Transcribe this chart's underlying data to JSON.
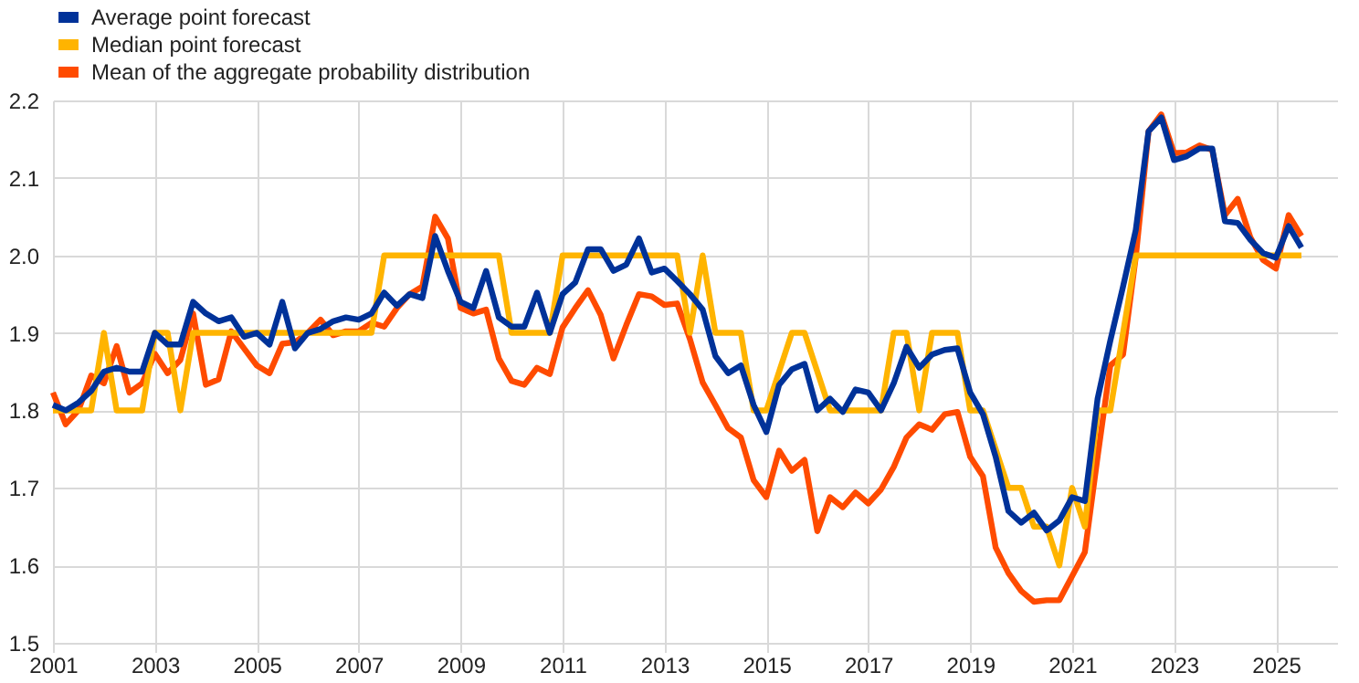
{
  "chart_data": {
    "type": "line",
    "x": [
      2001,
      2001.25,
      2001.5,
      2001.75,
      2002,
      2002.25,
      2002.5,
      2002.75,
      2003,
      2003.25,
      2003.5,
      2003.75,
      2004,
      2004.25,
      2004.5,
      2004.75,
      2005,
      2005.25,
      2005.5,
      2005.75,
      2006,
      2006.25,
      2006.5,
      2006.75,
      2007,
      2007.25,
      2007.5,
      2007.75,
      2008,
      2008.25,
      2008.5,
      2008.75,
      2009,
      2009.25,
      2009.5,
      2009.75,
      2010,
      2010.25,
      2010.5,
      2010.75,
      2011,
      2011.25,
      2011.5,
      2011.75,
      2012,
      2012.25,
      2012.5,
      2012.75,
      2013,
      2013.25,
      2013.5,
      2013.75,
      2014,
      2014.25,
      2014.5,
      2014.75,
      2015,
      2015.25,
      2015.5,
      2015.75,
      2016,
      2016.25,
      2016.5,
      2016.75,
      2017,
      2017.25,
      2017.5,
      2017.75,
      2018,
      2018.25,
      2018.5,
      2018.75,
      2019,
      2019.25,
      2019.5,
      2019.75,
      2020,
      2020.25,
      2020.5,
      2020.75,
      2021,
      2021.25,
      2021.5,
      2021.75,
      2022,
      2022.25,
      2022.5,
      2022.75,
      2023,
      2023.25,
      2023.5,
      2023.75,
      2024,
      2024.25,
      2024.5,
      2024.75,
      2025,
      2025.25,
      2025.5
    ],
    "series": [
      {
        "name": "Average point forecast",
        "color": "#003299",
        "values": [
          1.807,
          1.8,
          1.81,
          1.825,
          1.85,
          1.855,
          1.85,
          1.85,
          1.9,
          1.885,
          1.885,
          1.94,
          1.925,
          1.915,
          1.92,
          1.895,
          1.9,
          1.885,
          1.94,
          1.88,
          1.9,
          1.905,
          1.915,
          1.92,
          1.917,
          1.925,
          1.952,
          1.935,
          1.95,
          1.945,
          2.025,
          1.98,
          1.94,
          1.932,
          1.98,
          1.92,
          1.908,
          1.908,
          1.952,
          1.9,
          1.95,
          1.965,
          2.008,
          2.008,
          1.98,
          1.988,
          2.022,
          1.978,
          1.983,
          1.967,
          1.95,
          1.93,
          1.87,
          1.848,
          1.858,
          1.807,
          1.772,
          1.833,
          1.853,
          1.86,
          1.8,
          1.815,
          1.798,
          1.827,
          1.823,
          1.8,
          1.835,
          1.882,
          1.855,
          1.872,
          1.878,
          1.88,
          1.823,
          1.795,
          1.74,
          1.67,
          1.655,
          1.668,
          1.645,
          1.658,
          1.688,
          1.683,
          1.815,
          1.89,
          1.96,
          2.033,
          2.16,
          2.178,
          2.123,
          2.128,
          2.138,
          2.138,
          2.044,
          2.042,
          2.02,
          2.003,
          1.997,
          2.038,
          2.01
        ]
      },
      {
        "name": "Median point forecast",
        "color": "#ffb400",
        "values": [
          1.8,
          1.8,
          1.8,
          1.8,
          1.9,
          1.8,
          1.8,
          1.8,
          1.9,
          1.9,
          1.8,
          1.9,
          1.9,
          1.9,
          1.9,
          1.9,
          1.9,
          1.9,
          1.9,
          1.9,
          1.9,
          1.9,
          1.9,
          1.9,
          1.9,
          1.9,
          2.0,
          2.0,
          2.0,
          2.0,
          2.0,
          2.0,
          2.0,
          2.0,
          2.0,
          2.0,
          1.9,
          1.9,
          1.9,
          1.9,
          2.0,
          2.0,
          2.0,
          2.0,
          2.0,
          2.0,
          2.0,
          2.0,
          2.0,
          2.0,
          1.9,
          2.0,
          1.9,
          1.9,
          1.9,
          1.8,
          1.8,
          1.85,
          1.9,
          1.9,
          1.85,
          1.8,
          1.8,
          1.8,
          1.8,
          1.8,
          1.9,
          1.9,
          1.8,
          1.9,
          1.9,
          1.9,
          1.8,
          1.8,
          1.75,
          1.7,
          1.7,
          1.65,
          1.65,
          1.6,
          1.7,
          1.65,
          1.8,
          1.8,
          1.9,
          2.0,
          2.0,
          2.0,
          2.0,
          2.0,
          2.0,
          2.0,
          2.0,
          2.0,
          2.0,
          2.0,
          2.0,
          2.0,
          2.0
        ]
      },
      {
        "name": "Mean of the aggregate probability distribution",
        "color": "#ff4b00",
        "values": [
          1.823,
          1.782,
          1.8,
          1.845,
          1.835,
          1.883,
          1.823,
          1.835,
          1.873,
          1.848,
          1.865,
          1.925,
          1.833,
          1.84,
          1.902,
          1.88,
          1.858,
          1.848,
          1.886,
          1.888,
          1.9,
          1.917,
          1.897,
          1.902,
          1.902,
          1.913,
          1.908,
          1.932,
          1.95,
          1.96,
          2.05,
          2.022,
          1.932,
          1.925,
          1.93,
          1.867,
          1.838,
          1.833,
          1.855,
          1.847,
          1.907,
          1.932,
          1.955,
          1.923,
          1.867,
          1.91,
          1.95,
          1.947,
          1.936,
          1.938,
          1.892,
          1.836,
          1.807,
          1.777,
          1.765,
          1.71,
          1.688,
          1.748,
          1.722,
          1.736,
          1.644,
          1.688,
          1.675,
          1.694,
          1.68,
          1.698,
          1.727,
          1.765,
          1.782,
          1.775,
          1.795,
          1.798,
          1.74,
          1.715,
          1.623,
          1.59,
          1.567,
          1.553,
          1.555,
          1.555,
          1.586,
          1.617,
          1.74,
          1.858,
          1.872,
          1.998,
          2.16,
          2.182,
          2.132,
          2.133,
          2.142,
          2.136,
          2.052,
          2.073,
          2.023,
          1.994,
          1.983,
          2.052,
          2.025
        ]
      }
    ],
    "xlim": [
      2001,
      2026.2
    ],
    "xticks": [
      2001,
      2003,
      2005,
      2007,
      2009,
      2011,
      2013,
      2015,
      2017,
      2019,
      2021,
      2023,
      2025
    ],
    "ylim": [
      1.5,
      2.2
    ],
    "yticks": [
      1.5,
      1.6,
      1.7,
      1.8,
      1.9,
      {
        "value": 2,
        "label": "2.0"
      },
      2.1,
      2.2
    ],
    "grid": true,
    "legend": "top left",
    "marker": "none",
    "line_style": "solid"
  }
}
